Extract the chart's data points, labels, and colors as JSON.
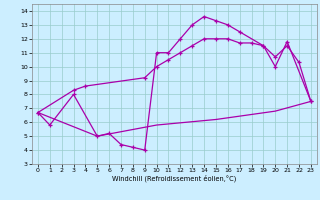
{
  "xlabel": "Windchill (Refroidissement éolien,°C)",
  "bg_color": "#cceeff",
  "line_color": "#aa00aa",
  "grid_color": "#99cccc",
  "xlim": [
    -0.5,
    23.5
  ],
  "ylim": [
    3,
    14.5
  ],
  "xticks": [
    0,
    1,
    2,
    3,
    4,
    5,
    6,
    7,
    8,
    9,
    10,
    11,
    12,
    13,
    14,
    15,
    16,
    17,
    18,
    19,
    20,
    21,
    22,
    23
  ],
  "yticks": [
    3,
    4,
    5,
    6,
    7,
    8,
    9,
    10,
    11,
    12,
    13,
    14
  ],
  "line1_x": [
    0,
    1,
    3,
    5,
    6,
    7,
    8,
    9,
    10,
    11,
    12,
    13,
    14,
    15,
    16,
    17,
    19,
    20,
    21,
    23
  ],
  "line1_y": [
    6.7,
    5.8,
    8.0,
    5.0,
    5.2,
    4.4,
    4.2,
    4.0,
    11.0,
    11.0,
    12.0,
    13.0,
    13.6,
    13.3,
    13.0,
    12.5,
    11.5,
    10.0,
    11.8,
    7.5
  ],
  "line2_x": [
    0,
    3,
    4,
    9,
    10,
    11,
    12,
    13,
    14,
    15,
    16,
    17,
    18,
    19,
    20,
    21,
    22,
    23
  ],
  "line2_y": [
    6.7,
    8.3,
    8.6,
    9.2,
    10.0,
    10.5,
    11.0,
    11.5,
    12.0,
    12.0,
    12.0,
    11.7,
    11.7,
    11.5,
    10.7,
    11.5,
    10.3,
    7.5
  ],
  "line3_x": [
    0,
    5,
    10,
    15,
    20,
    23
  ],
  "line3_y": [
    6.7,
    5.0,
    5.8,
    6.2,
    6.8,
    7.5
  ]
}
